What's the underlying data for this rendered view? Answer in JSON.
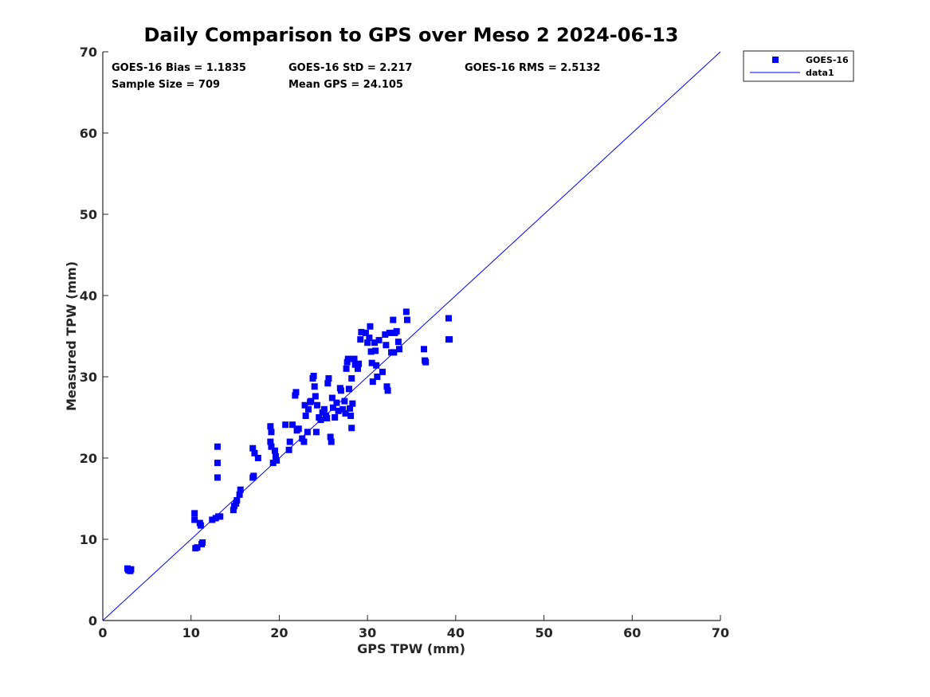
{
  "chart_data": {
    "type": "scatter",
    "title": "Daily Comparison to GPS over Meso 2 2024-06-13",
    "xlabel": "GPS TPW (mm)",
    "ylabel": "Measured TPW (mm)",
    "xlim": [
      0,
      70
    ],
    "ylim": [
      0,
      70
    ],
    "xticks": [
      "0",
      "10",
      "20",
      "30",
      "40",
      "50",
      "60",
      "70"
    ],
    "yticks": [
      "0",
      "10",
      "20",
      "30",
      "40",
      "50",
      "60",
      "70"
    ],
    "grid": false,
    "legend_placement": "outside top-right",
    "stats": {
      "bias": "GOES-16 Bias = 1.1835",
      "std": "GOES-16 StD = 2.217",
      "rms": "GOES-16 RMS = 2.5132",
      "sample_size": "Sample Size = 709",
      "mean_gps": "Mean GPS = 24.105"
    },
    "series": [
      {
        "name": "GOES-16",
        "marker": "square",
        "color": "#0000ff",
        "points": [
          [
            2.8,
            6.4
          ],
          [
            2.9,
            6.2
          ],
          [
            3.1,
            6.1
          ],
          [
            3.2,
            6.3
          ],
          [
            10.4,
            13.2
          ],
          [
            10.4,
            12.4
          ],
          [
            10.5,
            8.9
          ],
          [
            10.7,
            9.0
          ],
          [
            11.0,
            12.0
          ],
          [
            11.1,
            11.7
          ],
          [
            11.2,
            9.4
          ],
          [
            11.3,
            9.6
          ],
          [
            12.4,
            12.4
          ],
          [
            12.8,
            12.6
          ],
          [
            13.0,
            21.4
          ],
          [
            13.0,
            19.4
          ],
          [
            13.0,
            17.6
          ],
          [
            13.1,
            12.8
          ],
          [
            13.3,
            12.8
          ],
          [
            14.8,
            13.6
          ],
          [
            14.9,
            14.1
          ],
          [
            15.1,
            14.4
          ],
          [
            15.2,
            14.8
          ],
          [
            15.5,
            15.5
          ],
          [
            15.6,
            16.1
          ],
          [
            17.0,
            17.6
          ],
          [
            17.1,
            17.8
          ],
          [
            17.0,
            21.2
          ],
          [
            17.2,
            20.6
          ],
          [
            17.6,
            20.0
          ],
          [
            19.0,
            23.9
          ],
          [
            19.1,
            23.2
          ],
          [
            19.0,
            22.0
          ],
          [
            19.1,
            21.4
          ],
          [
            19.3,
            19.4
          ],
          [
            19.5,
            20.9
          ],
          [
            19.6,
            20.2
          ],
          [
            19.7,
            19.7
          ],
          [
            20.7,
            24.1
          ],
          [
            21.1,
            21.0
          ],
          [
            21.2,
            22.0
          ],
          [
            21.5,
            24.1
          ],
          [
            21.8,
            27.7
          ],
          [
            21.9,
            28.1
          ],
          [
            22.0,
            23.4
          ],
          [
            22.2,
            23.6
          ],
          [
            22.6,
            22.4
          ],
          [
            22.8,
            22.0
          ],
          [
            22.9,
            26.5
          ],
          [
            23.0,
            25.2
          ],
          [
            23.2,
            23.2
          ],
          [
            23.3,
            26.0
          ],
          [
            23.5,
            26.9
          ],
          [
            23.6,
            27.0
          ],
          [
            23.8,
            29.8
          ],
          [
            23.9,
            30.1
          ],
          [
            24.0,
            28.8
          ],
          [
            24.1,
            27.6
          ],
          [
            24.2,
            23.2
          ],
          [
            24.3,
            26.5
          ],
          [
            24.5,
            25.0
          ],
          [
            24.7,
            24.7
          ],
          [
            24.9,
            25.6
          ],
          [
            25.1,
            26.0
          ],
          [
            25.3,
            25.2
          ],
          [
            25.4,
            24.9
          ],
          [
            25.5,
            29.2
          ],
          [
            25.6,
            29.8
          ],
          [
            25.8,
            22.6
          ],
          [
            25.9,
            22.0
          ],
          [
            26.0,
            27.4
          ],
          [
            26.1,
            26.2
          ],
          [
            26.3,
            25.0
          ],
          [
            26.5,
            26.8
          ],
          [
            26.7,
            25.8
          ],
          [
            26.9,
            28.6
          ],
          [
            27.0,
            28.3
          ],
          [
            27.2,
            26.0
          ],
          [
            27.4,
            27.0
          ],
          [
            27.5,
            25.5
          ],
          [
            27.6,
            31.0
          ],
          [
            27.7,
            31.8
          ],
          [
            27.8,
            32.2
          ],
          [
            27.9,
            28.5
          ],
          [
            28.0,
            26.1
          ],
          [
            28.1,
            25.2
          ],
          [
            28.2,
            29.8
          ],
          [
            28.2,
            23.7
          ],
          [
            28.3,
            26.7
          ],
          [
            28.5,
            32.2
          ],
          [
            28.6,
            31.5
          ],
          [
            28.9,
            31.0
          ],
          [
            29.0,
            31.6
          ],
          [
            29.2,
            34.6
          ],
          [
            29.3,
            35.5
          ],
          [
            29.8,
            35.4
          ],
          [
            30.0,
            34.2
          ],
          [
            30.2,
            34.8
          ],
          [
            30.3,
            36.2
          ],
          [
            30.4,
            33.1
          ],
          [
            30.5,
            31.7
          ],
          [
            30.6,
            29.4
          ],
          [
            30.8,
            34.2
          ],
          [
            30.9,
            33.2
          ],
          [
            31.0,
            31.4
          ],
          [
            31.1,
            30.0
          ],
          [
            31.3,
            34.5
          ],
          [
            31.7,
            30.6
          ],
          [
            32.0,
            35.2
          ],
          [
            32.1,
            33.9
          ],
          [
            32.2,
            28.8
          ],
          [
            32.3,
            28.3
          ],
          [
            32.5,
            35.4
          ],
          [
            32.7,
            33.0
          ],
          [
            32.9,
            37.0
          ],
          [
            33.0,
            33.0
          ],
          [
            33.1,
            35.4
          ],
          [
            33.3,
            35.6
          ],
          [
            33.5,
            34.3
          ],
          [
            33.6,
            33.4
          ],
          [
            34.4,
            38.0
          ],
          [
            34.5,
            37.0
          ],
          [
            36.4,
            33.4
          ],
          [
            36.5,
            32.0
          ],
          [
            36.6,
            31.8
          ],
          [
            39.2,
            37.2
          ],
          [
            39.2,
            34.6
          ],
          [
            39.3,
            34.6
          ]
        ]
      },
      {
        "name": "data1",
        "type": "line",
        "color": "#0000ff",
        "x": [
          0,
          70
        ],
        "y": [
          0,
          70
        ]
      }
    ]
  }
}
